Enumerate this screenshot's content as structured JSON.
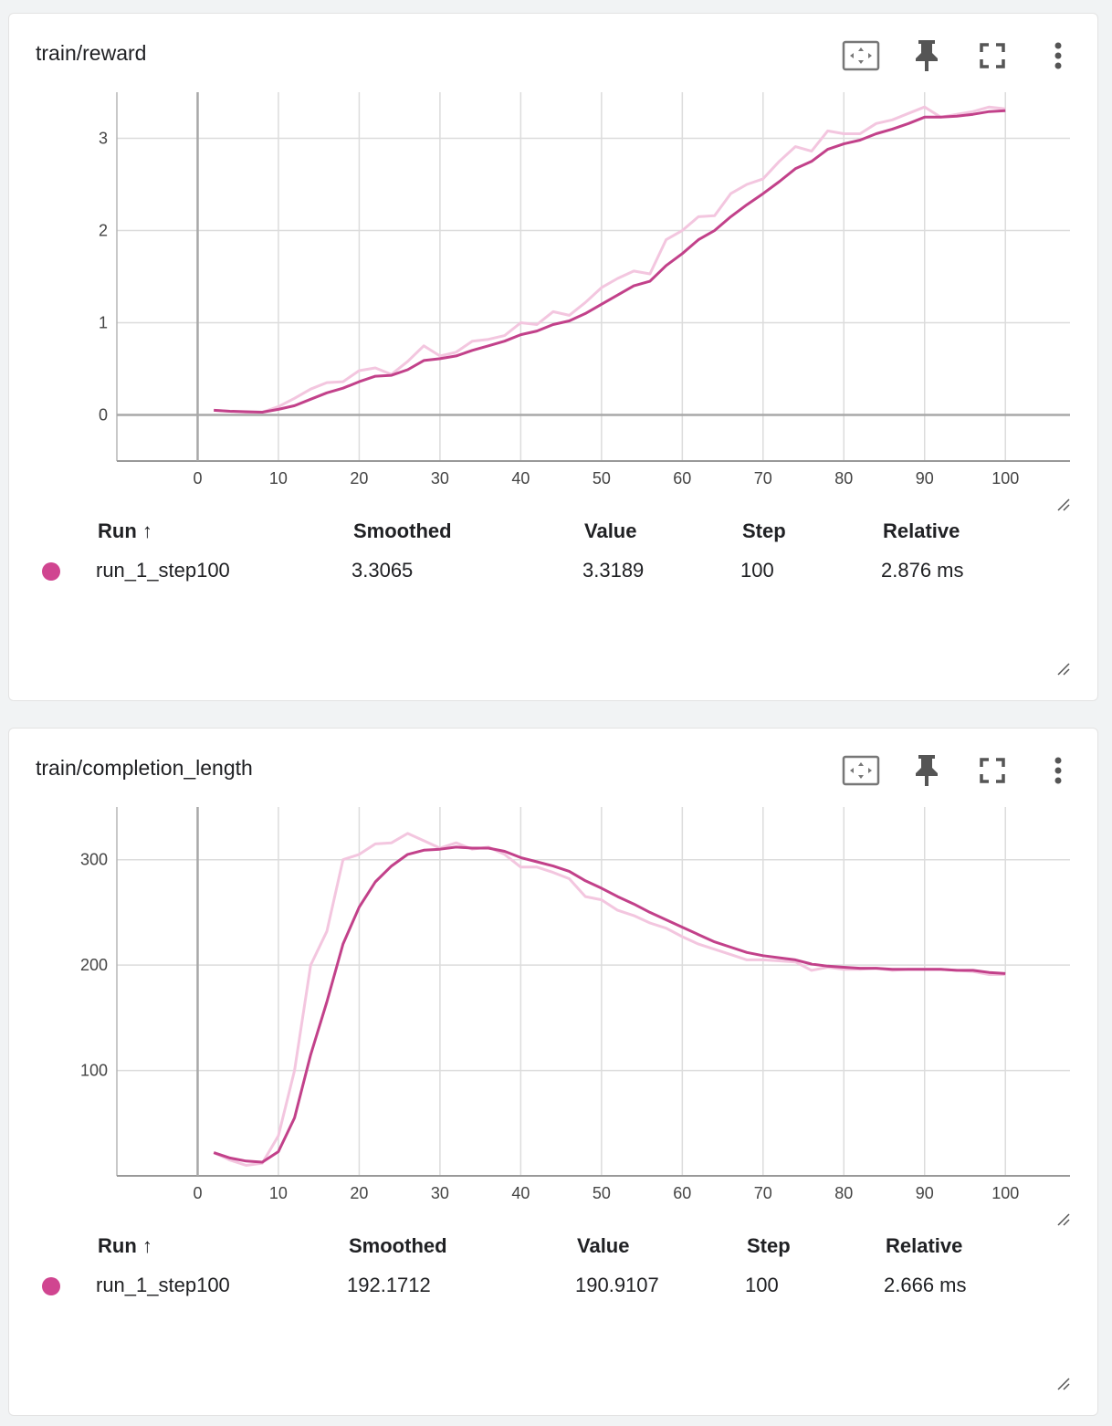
{
  "colors": {
    "smoothed": "#c2418a",
    "raw": "#f3c6df",
    "dot": "#d04590"
  },
  "cards": [
    {
      "title": "train/reward",
      "toolbar_icons": [
        "fit-domain-icon",
        "pin-icon",
        "fullscreen-icon",
        "more-vert-icon"
      ],
      "legend": {
        "headers": {
          "run": "Run ↑",
          "smoothed": "Smoothed",
          "value": "Value",
          "step": "Step",
          "relative": "Relative"
        },
        "row": {
          "run": "run_1_step100",
          "smoothed": "3.3065",
          "value": "3.3189",
          "step": "100",
          "relative": "2.876 ms"
        }
      },
      "chart_data": {
        "type": "line",
        "title": "train/reward",
        "xlabel": "",
        "ylabel": "",
        "xlim": [
          -10,
          108
        ],
        "ylim": [
          -0.5,
          3.5
        ],
        "x_ticks": [
          "0",
          "10",
          "20",
          "30",
          "40",
          "50",
          "60",
          "70",
          "80",
          "90",
          "100"
        ],
        "x_tick_values": [
          0,
          10,
          20,
          30,
          40,
          50,
          60,
          70,
          80,
          90,
          100
        ],
        "y_ticks": [
          "0",
          "1",
          "2",
          "3"
        ],
        "y_tick_values": [
          0,
          1,
          2,
          3
        ],
        "grid": true,
        "x": [
          2,
          4,
          6,
          8,
          10,
          12,
          14,
          16,
          18,
          20,
          22,
          24,
          26,
          28,
          30,
          32,
          34,
          36,
          38,
          40,
          42,
          44,
          46,
          48,
          50,
          52,
          54,
          56,
          58,
          60,
          62,
          64,
          66,
          68,
          70,
          72,
          74,
          76,
          78,
          80,
          82,
          84,
          86,
          88,
          90,
          92,
          94,
          96,
          98,
          100
        ],
        "series": [
          {
            "name": "run_1_step100",
            "kind": "raw",
            "values": [
              0.05,
              0.04,
              0.03,
              0.03,
              0.09,
              0.18,
              0.28,
              0.35,
              0.36,
              0.48,
              0.51,
              0.44,
              0.58,
              0.75,
              0.64,
              0.68,
              0.8,
              0.82,
              0.86,
              1.0,
              0.98,
              1.12,
              1.08,
              1.22,
              1.38,
              1.48,
              1.56,
              1.53,
              1.9,
              2.0,
              2.15,
              2.16,
              2.4,
              2.5,
              2.56,
              2.75,
              2.91,
              2.86,
              3.08,
              3.05,
              3.05,
              3.16,
              3.2,
              3.27,
              3.34,
              3.23,
              3.26,
              3.29,
              3.34,
              3.32
            ]
          },
          {
            "name": "run_1_step100",
            "kind": "smoothed",
            "values": [
              0.05,
              0.04,
              0.035,
              0.03,
              0.06,
              0.1,
              0.17,
              0.24,
              0.29,
              0.36,
              0.42,
              0.43,
              0.49,
              0.59,
              0.61,
              0.64,
              0.7,
              0.75,
              0.8,
              0.87,
              0.91,
              0.98,
              1.02,
              1.1,
              1.2,
              1.3,
              1.4,
              1.45,
              1.62,
              1.75,
              1.9,
              2.0,
              2.15,
              2.28,
              2.4,
              2.53,
              2.67,
              2.75,
              2.88,
              2.94,
              2.98,
              3.05,
              3.1,
              3.16,
              3.23,
              3.23,
              3.24,
              3.26,
              3.29,
              3.3
            ]
          }
        ]
      }
    },
    {
      "title": "train/completion_length",
      "toolbar_icons": [
        "fit-domain-icon",
        "pin-icon",
        "fullscreen-icon",
        "more-vert-icon"
      ],
      "legend": {
        "headers": {
          "run": "Run ↑",
          "smoothed": "Smoothed",
          "value": "Value",
          "step": "Step",
          "relative": "Relative"
        },
        "row": {
          "run": "run_1_step100",
          "smoothed": "192.1712",
          "value": "190.9107",
          "step": "100",
          "relative": "2.666 ms"
        }
      },
      "chart_data": {
        "type": "line",
        "title": "train/completion_length",
        "xlabel": "",
        "ylabel": "",
        "xlim": [
          -10,
          108
        ],
        "ylim": [
          0,
          350
        ],
        "x_ticks": [
          "0",
          "10",
          "20",
          "30",
          "40",
          "50",
          "60",
          "70",
          "80",
          "90",
          "100"
        ],
        "x_tick_values": [
          0,
          10,
          20,
          30,
          40,
          50,
          60,
          70,
          80,
          90,
          100
        ],
        "y_ticks": [
          "100",
          "200",
          "300"
        ],
        "y_tick_values": [
          100,
          200,
          300
        ],
        "grid": true,
        "x": [
          2,
          4,
          6,
          8,
          10,
          12,
          14,
          16,
          18,
          20,
          22,
          24,
          26,
          28,
          30,
          32,
          34,
          36,
          38,
          40,
          42,
          44,
          46,
          48,
          50,
          52,
          54,
          56,
          58,
          60,
          62,
          64,
          66,
          68,
          70,
          72,
          74,
          76,
          78,
          80,
          82,
          84,
          86,
          88,
          90,
          92,
          94,
          96,
          98,
          100
        ],
        "series": [
          {
            "name": "run_1_step100",
            "kind": "raw",
            "values": [
              22,
              15,
              10,
              12,
              38,
              100,
              200,
              232,
              300,
              305,
              315,
              316,
              325,
              318,
              311,
              316,
              310,
              312,
              305,
              293,
              293,
              288,
              282,
              265,
              262,
              252,
              247,
              240,
              235,
              227,
              220,
              215,
              210,
              205,
              205,
              204,
              203,
              195,
              198,
              196,
              196,
              197,
              195,
              196,
              196,
              196,
              195,
              194,
              191,
              191
            ]
          },
          {
            "name": "run_1_step100",
            "kind": "smoothed",
            "values": [
              22,
              17,
              14,
              13,
              23,
              55,
              115,
              165,
              220,
              255,
              279,
              294,
              305,
              309,
              310,
              312,
              311,
              311,
              308,
              302,
              298,
              294,
              289,
              280,
              273,
              265,
              258,
              250,
              243,
              236,
              229,
              222,
              217,
              212,
              209,
              207,
              205,
              201,
              199,
              198,
              197,
              197,
              196,
              196,
              196,
              196,
              195,
              195,
              193,
              192
            ]
          }
        ]
      }
    }
  ]
}
